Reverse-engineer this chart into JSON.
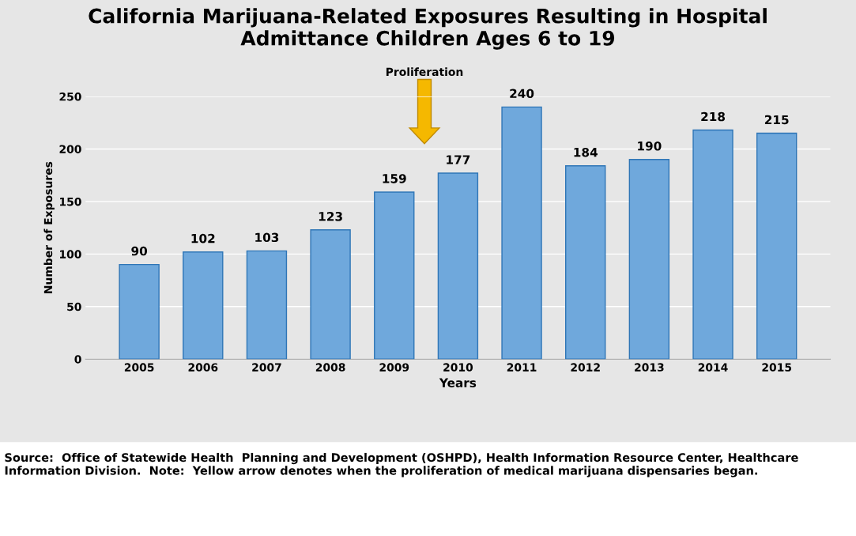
{
  "chart_data": {
    "type": "bar",
    "title": "California Marijuana-Related Exposures Resulting in Hospital\nAdmittance Children Ages 6 to 19",
    "xlabel": "Years",
    "ylabel": "Number of Exposures",
    "categories": [
      "2005",
      "2006",
      "2007",
      "2008",
      "2009",
      "2010",
      "2011",
      "2012",
      "2013",
      "2014",
      "2015"
    ],
    "values": [
      90,
      102,
      103,
      123,
      159,
      177,
      240,
      184,
      190,
      218,
      215
    ],
    "color": "#6fa8dc",
    "ylim": [
      0,
      250
    ],
    "yticks": [
      0,
      50,
      100,
      150,
      200,
      250
    ],
    "grid": "y",
    "legend": false,
    "data_labels": true,
    "annotations": [
      "Proliferation",
      "Source:  Office of Statewide Health  Planning and Development (OSHPD), Health Information Resource Center, Healthcare Information Division.  Note:  Yellow arrow denotes when the proliferation of medical marijuana dispensaries began."
    ]
  }
}
